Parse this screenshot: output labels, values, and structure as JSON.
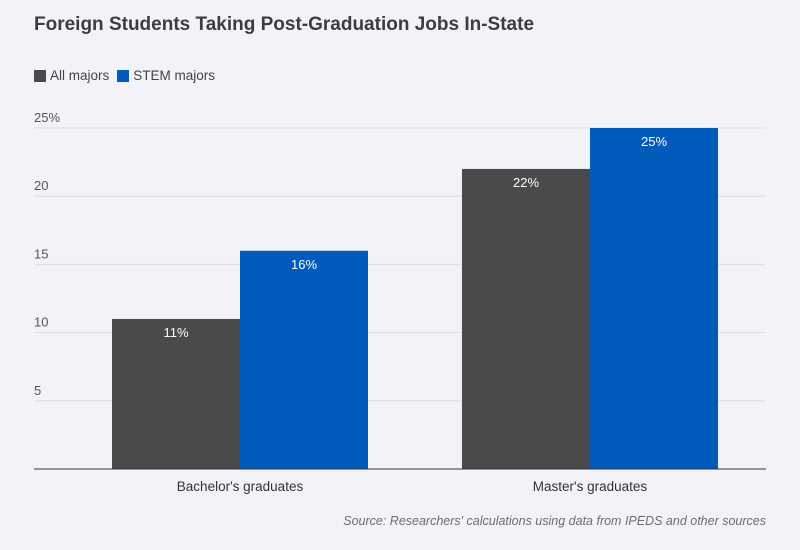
{
  "chart_data": {
    "type": "bar",
    "title": "Foreign Students Taking Post-Graduation Jobs In-State",
    "categories": [
      "Bachelor's graduates",
      "Master's graduates"
    ],
    "series": [
      {
        "name": "All majors",
        "color": "#4a4a4d",
        "values": [
          11,
          22
        ],
        "labels": [
          "11%",
          "22%"
        ]
      },
      {
        "name": "STEM majors",
        "color": "#005bbb",
        "values": [
          16,
          25
        ],
        "labels": [
          "16%",
          "25%"
        ]
      }
    ],
    "ylim": [
      0,
      25
    ],
    "yticks": [
      5,
      10,
      15,
      20,
      25
    ],
    "ytick_labels": [
      "5",
      "10",
      "15",
      "20",
      "25%"
    ],
    "grid": true,
    "legend_position": "top-left",
    "source": "Source: Researchers' calculations using data from IPEDS and other sources"
  }
}
